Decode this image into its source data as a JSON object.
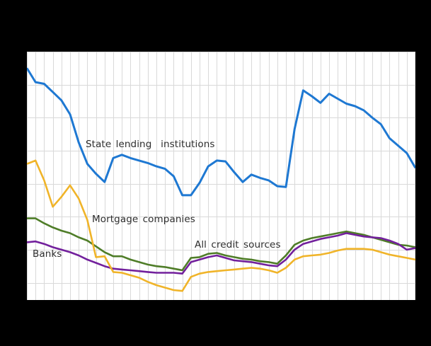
{
  "page": {
    "background_color": "#000000",
    "plot_background_color": "#ffffff"
  },
  "chart_data": {
    "type": "line",
    "title": "",
    "xlabel": "",
    "ylabel": "",
    "x_axis": {
      "points": 46,
      "tick_labels_visible": false
    },
    "y_axis": {
      "min": -1.05,
      "max": 14,
      "tick_labels_visible": false,
      "gridline_values": [
        0,
        2,
        4,
        6,
        8,
        10,
        12,
        14
      ]
    },
    "grid": {
      "color": "#d9d9d9",
      "vertical_lines": 46,
      "horizontal_lines": 8
    },
    "legend_position": "inline-labels",
    "series": [
      {
        "name": "All credit sources",
        "slug": "all-credit-sources",
        "color": "#4f7d28",
        "stroke_width": 2.6,
        "values": [
          3.9,
          3.9,
          3.6,
          3.35,
          3.15,
          3.0,
          2.75,
          2.55,
          2.2,
          1.85,
          1.6,
          1.6,
          1.4,
          1.25,
          1.1,
          1.0,
          0.95,
          0.85,
          0.75,
          1.5,
          1.55,
          1.75,
          1.8,
          1.65,
          1.55,
          1.45,
          1.4,
          1.3,
          1.25,
          1.15,
          1.65,
          2.3,
          2.55,
          2.7,
          2.8,
          2.9,
          3.0,
          3.1,
          3.0,
          2.9,
          2.75,
          2.6,
          2.45,
          2.3,
          2.25,
          2.15
        ]
      },
      {
        "name": "Banks",
        "slug": "banks",
        "color": "#72209c",
        "stroke_width": 2.6,
        "values": [
          2.45,
          2.5,
          2.35,
          2.15,
          2.0,
          1.85,
          1.65,
          1.4,
          1.2,
          1.0,
          0.85,
          0.8,
          0.75,
          0.7,
          0.65,
          0.6,
          0.6,
          0.6,
          0.55,
          1.25,
          1.4,
          1.55,
          1.65,
          1.5,
          1.35,
          1.3,
          1.25,
          1.15,
          1.05,
          1.0,
          1.4,
          2.0,
          2.35,
          2.5,
          2.65,
          2.75,
          2.85,
          3.0,
          2.9,
          2.8,
          2.75,
          2.7,
          2.55,
          2.35,
          2.0,
          2.1
        ]
      },
      {
        "name": "Mortgage companies",
        "slug": "mortgage-companies",
        "color": "#f0b429",
        "stroke_width": 2.6,
        "values": [
          7.2,
          7.4,
          6.2,
          4.6,
          5.2,
          5.9,
          5.1,
          3.8,
          1.55,
          1.6,
          0.65,
          0.6,
          0.45,
          0.3,
          0.05,
          -0.15,
          -0.3,
          -0.45,
          -0.5,
          0.35,
          0.55,
          0.65,
          0.7,
          0.75,
          0.8,
          0.85,
          0.9,
          0.85,
          0.75,
          0.6,
          0.9,
          1.4,
          1.6,
          1.65,
          1.7,
          1.8,
          1.95,
          2.05,
          2.05,
          2.05,
          2.0,
          1.85,
          1.7,
          1.6,
          1.5,
          1.4
        ]
      },
      {
        "name": "State lending institutions",
        "slug": "state-lending-institutions",
        "color": "#1e78d2",
        "stroke_width": 3,
        "values": [
          13.0,
          12.15,
          12.05,
          11.55,
          11.05,
          10.2,
          8.5,
          7.2,
          6.6,
          6.1,
          7.55,
          7.75,
          7.55,
          7.4,
          7.25,
          7.05,
          6.9,
          6.45,
          5.3,
          5.3,
          6.05,
          7.05,
          7.4,
          7.35,
          6.7,
          6.1,
          6.55,
          6.35,
          6.2,
          5.85,
          5.8,
          9.3,
          11.65,
          11.3,
          10.9,
          11.45,
          11.15,
          10.85,
          10.7,
          10.45,
          10.0,
          9.6,
          8.75,
          8.3,
          7.85,
          6.95
        ]
      }
    ],
    "labels": {
      "state_lending": "State lending  institutions",
      "mortgage": "Mortgage companies",
      "all_credit": "All credit sources",
      "banks": "Banks"
    }
  }
}
